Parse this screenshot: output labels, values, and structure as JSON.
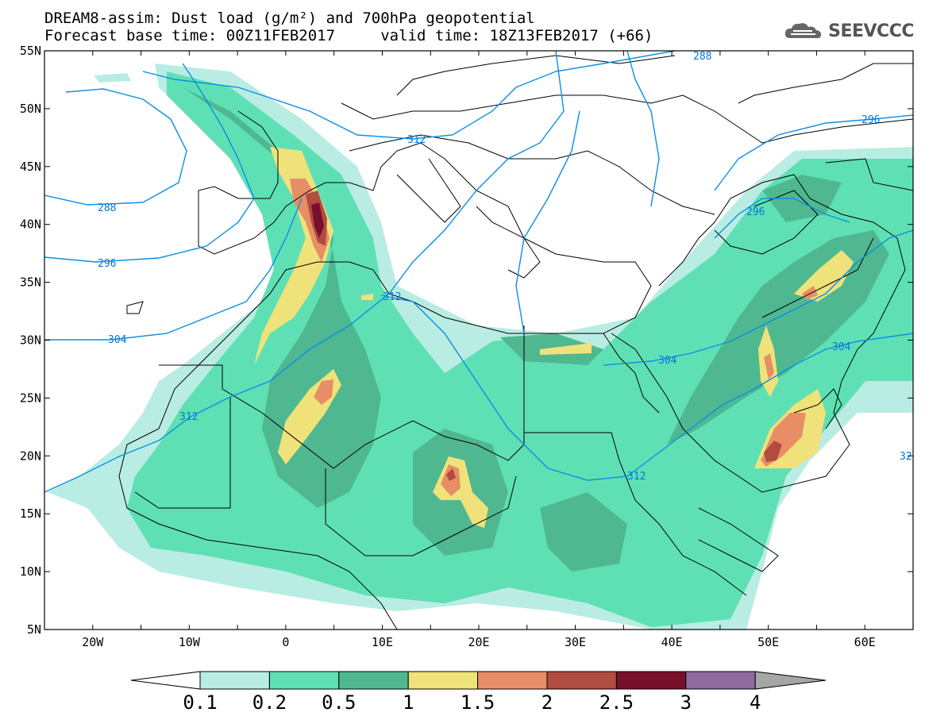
{
  "header": {
    "title_line1": "DREAM8-assim: Dust load (g/m²) and 700hPa geopotential",
    "title_line2": "Forecast base time: 00Z11FEB2017     valid time: 18Z13FEB2017 (+66)"
  },
  "logo": {
    "text": "SEEVCCC",
    "icon": "cloud-logo-icon"
  },
  "axes": {
    "lat_labels": [
      "55N",
      "50N",
      "45N",
      "40N",
      "35N",
      "30N",
      "25N",
      "20N",
      "15N",
      "10N",
      "5N"
    ],
    "lon_labels": [
      "20W",
      "10W",
      "0",
      "10E",
      "20E",
      "30E",
      "40E",
      "50E",
      "60E"
    ],
    "lat_range": [
      5,
      55
    ],
    "lon_range": [
      -25,
      65
    ]
  },
  "contours": {
    "color": "#0a8fe6",
    "labels": [
      "288",
      "312",
      "296",
      "288",
      "296",
      "304",
      "312",
      "304",
      "312",
      "312",
      "296",
      "32"
    ]
  },
  "colorbar": {
    "levels": [
      "0.1",
      "0.2",
      "0.5",
      "1",
      "1.5",
      "2",
      "2.5",
      "3",
      "4"
    ],
    "colors": [
      "#b9ede3",
      "#5fe0b4",
      "#4fb890",
      "#f0e27a",
      "#e88e66",
      "#b04c40",
      "#7a0f2c",
      "#8e6aa0",
      "#a6a6a6"
    ],
    "below_color": "#ffffff"
  }
}
